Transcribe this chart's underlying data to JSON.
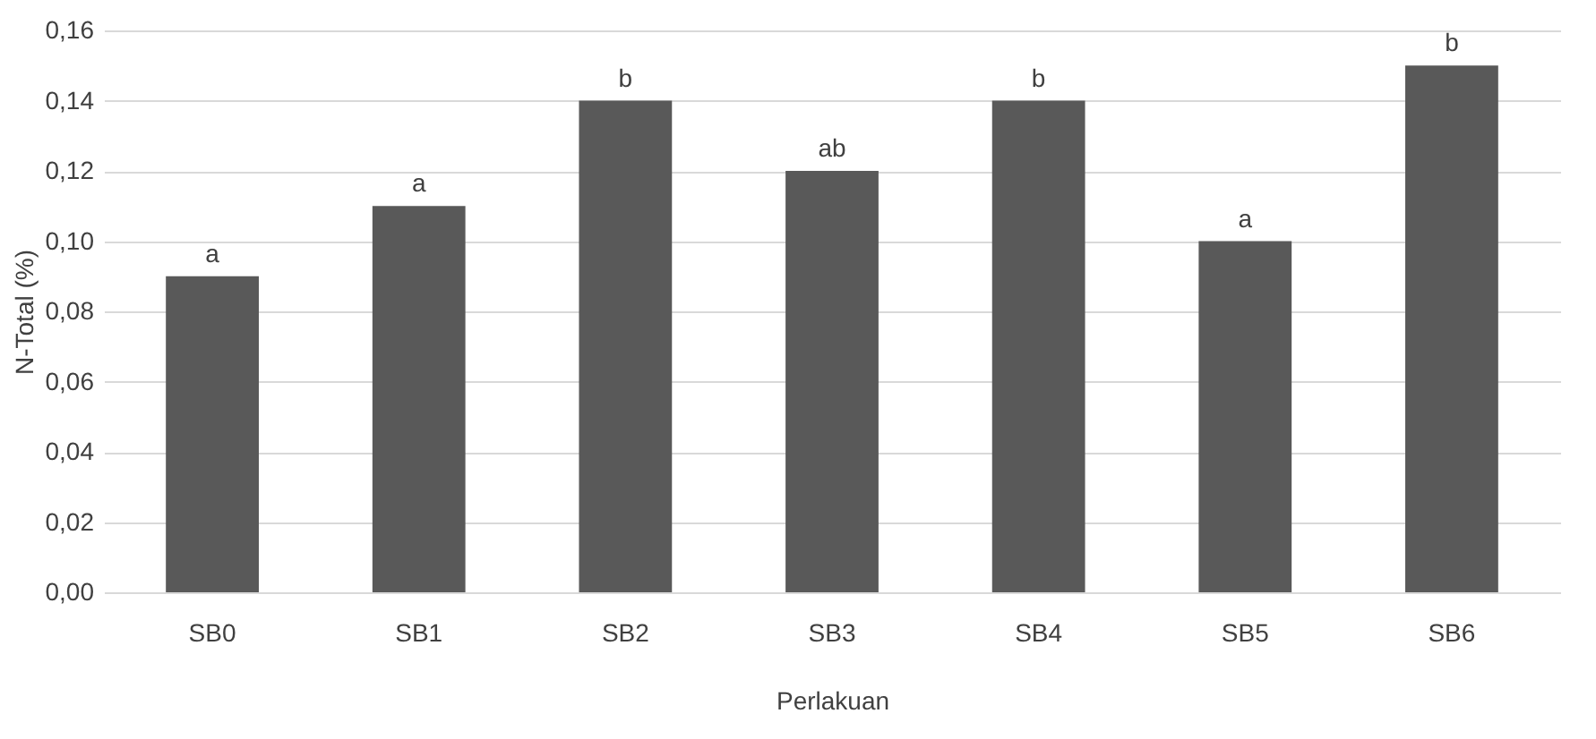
{
  "chart_data": {
    "type": "bar",
    "xlabel": "Perlakuan",
    "ylabel": "N-Total (%)",
    "categories": [
      "SB0",
      "SB1",
      "SB2",
      "SB3",
      "SB4",
      "SB5",
      "SB6"
    ],
    "values": [
      0.09,
      0.11,
      0.14,
      0.12,
      0.14,
      0.1,
      0.15
    ],
    "value_labels": [
      "a",
      "a",
      "b",
      "ab",
      "b",
      "a",
      "b"
    ],
    "color": "#595959",
    "ylim": [
      0,
      0.16
    ],
    "yticks": [
      {
        "value": 0,
        "label": "0,00"
      },
      {
        "value": 0.02,
        "label": "0,02"
      },
      {
        "value": 0.04,
        "label": "0,04"
      },
      {
        "value": 0.06,
        "label": "0,06"
      },
      {
        "value": 0.08,
        "label": "0,08"
      },
      {
        "value": 0.1,
        "label": "0,10"
      },
      {
        "value": 0.12,
        "label": "0,12"
      },
      {
        "value": 0.14,
        "label": "0,14"
      },
      {
        "value": 0.16,
        "label": "0,16"
      }
    ],
    "grid": "y"
  }
}
